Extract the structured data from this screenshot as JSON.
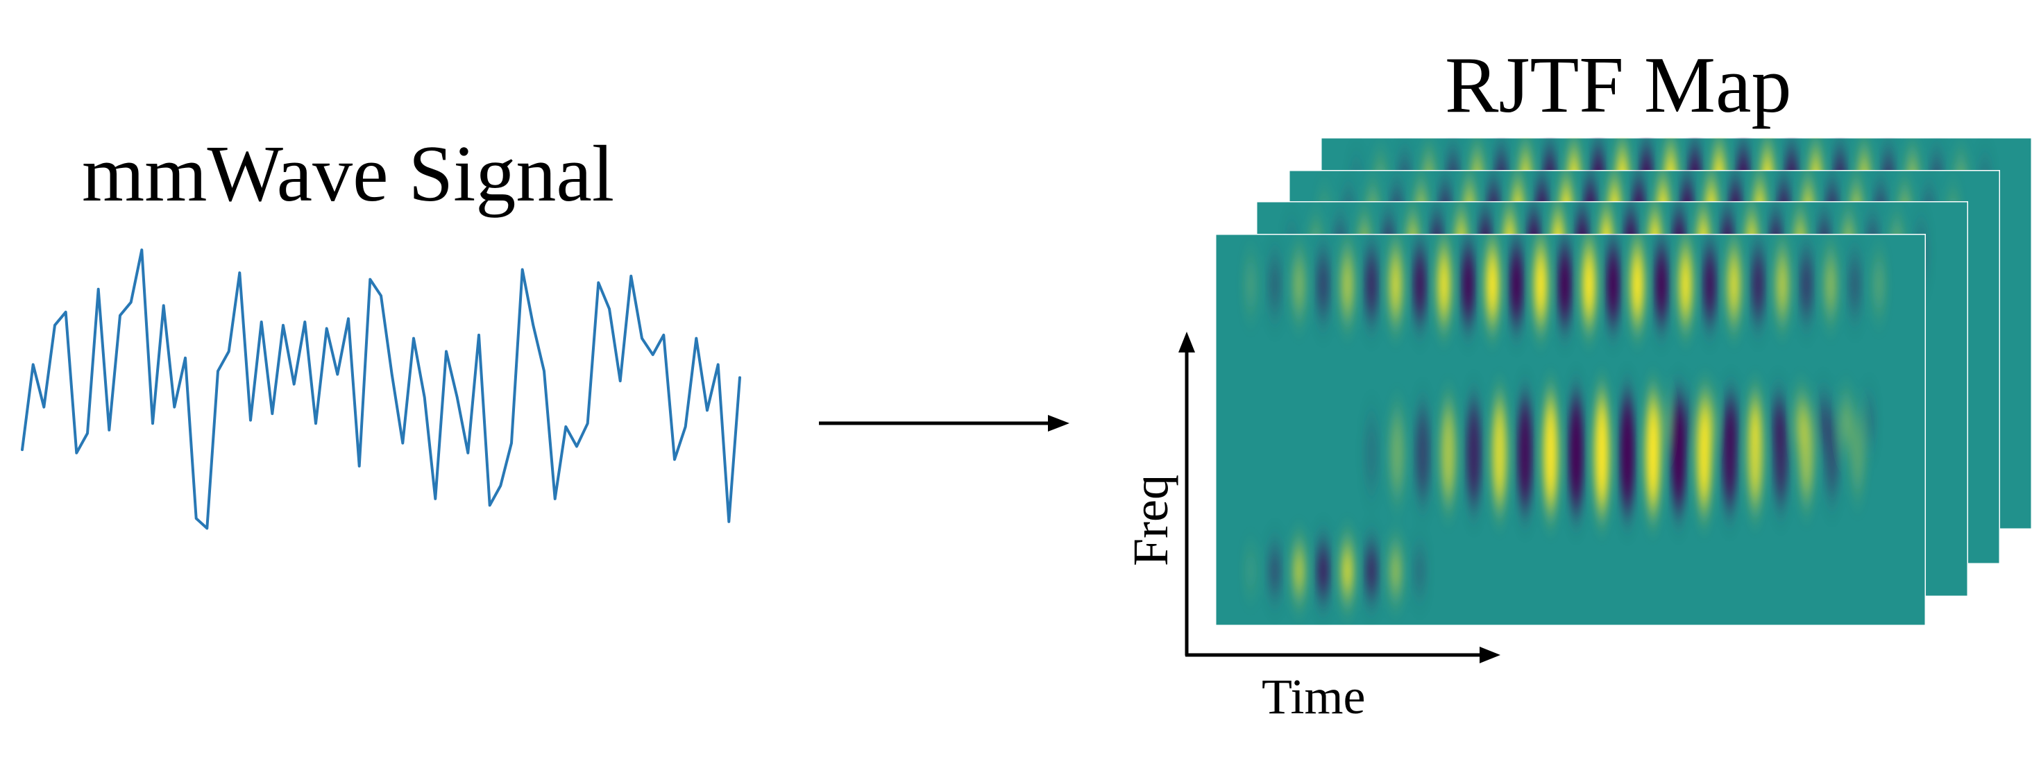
{
  "labels": {
    "signal_title": "mmWave Signal",
    "map_title": "RJTF Map",
    "x_axis": "Time",
    "y_axis": "Freq"
  },
  "colors": {
    "signal_line": "#2878b5",
    "heatmap_low": "#440154",
    "heatmap_mid": "#21918c",
    "heatmap_high": "#fde725",
    "arrow": "#000000"
  },
  "signal_samples": [
    0.36,
    0.62,
    0.49,
    0.74,
    0.78,
    0.35,
    0.41,
    0.85,
    0.42,
    0.77,
    0.81,
    0.97,
    0.44,
    0.8,
    0.49,
    0.64,
    0.15,
    0.12,
    0.6,
    0.66,
    0.9,
    0.45,
    0.75,
    0.47,
    0.74,
    0.56,
    0.75,
    0.44,
    0.73,
    0.59,
    0.76,
    0.31,
    0.88,
    0.83,
    0.59,
    0.38,
    0.7,
    0.52,
    0.21,
    0.66,
    0.52,
    0.35,
    0.71,
    0.19,
    0.25,
    0.38,
    0.91,
    0.74,
    0.6,
    0.21,
    0.43,
    0.37,
    0.44,
    0.87,
    0.79,
    0.57,
    0.89,
    0.7,
    0.65,
    0.71,
    0.33,
    0.43,
    0.7,
    0.48,
    0.62,
    0.14,
    0.58
  ],
  "map_layers": 4
}
